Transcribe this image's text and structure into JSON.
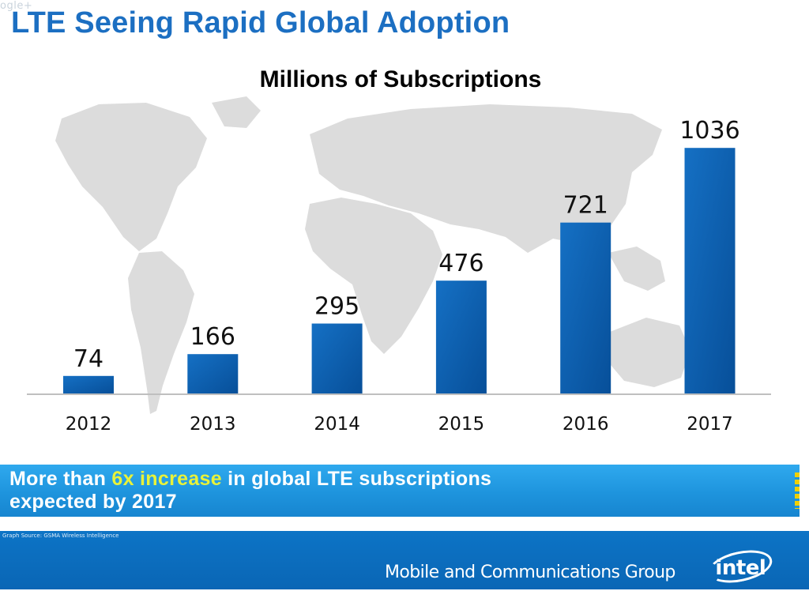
{
  "corner_tag": "ogle+",
  "slide_title": "LTE Seeing Rapid Global Adoption",
  "chart_data": {
    "type": "bar",
    "title": "Millions of Subscriptions",
    "categories": [
      "2012",
      "2013",
      "2014",
      "2015",
      "2016",
      "2017"
    ],
    "values": [
      74,
      166,
      295,
      476,
      721,
      1036
    ],
    "xlabel": "",
    "ylabel": "",
    "ylim": [
      0,
      1150
    ],
    "grid": false,
    "background": "world map silhouette",
    "bar_color": "#0a5fad"
  },
  "banner": {
    "line1_prefix": "More than ",
    "line1_highlight": "6x increase",
    "line1_suffix": " in global LTE subscriptions",
    "line2": "expected by 2017"
  },
  "footer": {
    "source": "Graph Source: GSMA Wireless Intelligence",
    "group_name": "Mobile and Communications Group",
    "logo_text": "intel"
  },
  "colors": {
    "title_blue": "#1c6fc2",
    "bar_blue": "#0a5fad",
    "banner_blue": "#1e94dd",
    "highlight_yellow": "#e8f23a",
    "footer_blue": "#0a66b5"
  }
}
